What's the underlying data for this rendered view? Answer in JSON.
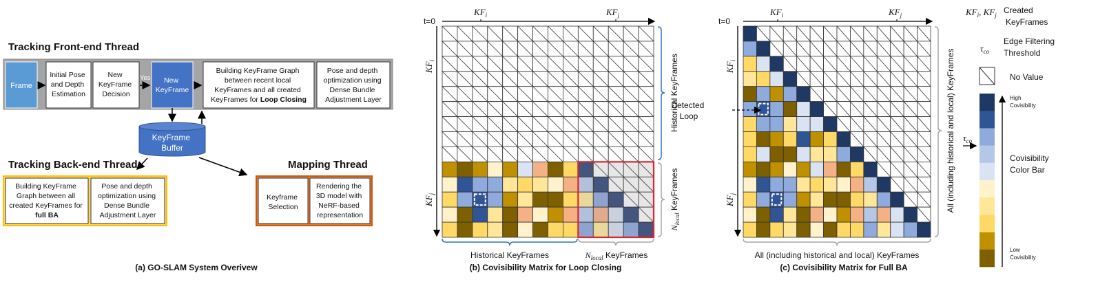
{
  "panel_a": {
    "frontend_title": "Tracking Front-end Thread",
    "frame": "Frame",
    "initial_pose": [
      "Initial Pose",
      "and Depth",
      "Estimation"
    ],
    "decision": [
      "New",
      "KeyFrame",
      "Decision"
    ],
    "yes": "Yes",
    "new_keyframe": [
      "New",
      "KeyFrame"
    ],
    "building_lc": [
      "Building KeyFrame Graph",
      "between recent local",
      "KeyFrames and all created",
      "KeyFrames for ",
      "Loop Closing"
    ],
    "pose_opt": [
      "Pose and depth",
      "optimization using",
      "Dense Bundle",
      "Adjustment Layer"
    ],
    "buffer": [
      "KeyFrame",
      "Buffer"
    ],
    "backend_title": "Tracking Back-end Thread",
    "building_ba": [
      "Building KeyFrame",
      "Graph between all",
      "created KeyFrames for",
      "full BA"
    ],
    "pose_opt_ba": [
      "Pose and depth",
      "optimization using",
      "Dense Bundle",
      "Adjustment Layer"
    ],
    "mapping_title": "Mapping Thread",
    "kf_selection": [
      "Keyframe",
      "Selection"
    ],
    "rendering": [
      "Rendering the",
      "3D model with",
      "NeRF-based",
      "representation"
    ],
    "caption": "(a) GO-SLAM System Overivew",
    "colors": {
      "frame": "#5b9bd5",
      "keyframe": "#4472c4",
      "band": "#a5a5a5",
      "backend": "#ffc000",
      "mapping": "#c55a11"
    }
  },
  "panel_b": {
    "t0": "t=0",
    "kfi": "KF",
    "kfi_sub": "i",
    "kfj": "KF",
    "kfj_sub": "j",
    "right_top": "Historical KeyFrames",
    "right_bottom_n": "N",
    "right_bottom_sub": "local",
    "right_bottom_rest": " KeyFrames",
    "bottom_left": "Historical KeyFrames",
    "bottom_right_n": "N",
    "bottom_right_sub": "local",
    "bottom_right_rest": " KeyFrames",
    "caption": "(b) Covisibility Matrix for Loop Closing",
    "matrix": [
      "- - - - - - - - - - - - - -",
      "- - - - - - - - - - - - - -",
      "- - - - - - - - - - - - - -",
      "- - - - - - - - - - - - - -",
      "- - - - - - - - - - - - - -",
      "- - - - - - - - - - - - - -",
      "- - - - - - - - - - - - - -",
      "- - - - - - - - - - - - - -",
      "- - - - - - - - - - - - - -",
      "O D O C O P S D G n x x x x",
      "C B M M Y G Y C S l n x x x",
      "G M B M O Y D D G t m n x x",
      "C D B Y D S C O S l s p n x",
      "G D G Y D C D G G m t p m n"
    ],
    "loop_cell": [
      11,
      2
    ]
  },
  "panel_c": {
    "t0": "t=0",
    "kfi": "KF",
    "kfi_sub": "i",
    "kfj": "KF",
    "kfj_sub": "j",
    "right": "All (including historical and local) KeyFrames",
    "bottom": "All (including historical and local) KeyFrames",
    "detected": [
      "Detected",
      "Loop"
    ],
    "caption": "(c) Covisibility Matrix for Full BA",
    "matrix": [
      "N - - - - - - - - - - - - -",
      "M N - - - - - - - - - - - -",
      "G P N - - - - - - - - - - -",
      "Y G P N - - - - - - - - - -",
      "D M O M N - - - - - - - - -",
      "M B M D P N - - - - - - - -",
      "G M M Y P P N - - - - - - -",
      "G D O G B O G N - - - - - -",
      "G P D D P Y Y M N - - - - -",
      "O D O C O P S D G N - - - -",
      "C B M M Y G Y C S L N - - -",
      "G M B M O Y D D G Y M N - -",
      "C D B Y D S C O S L S P N -",
      "G D G Y D C D G G M Y P M N"
    ],
    "loop_cells": [
      [
        5,
        1
      ],
      [
        11,
        2
      ]
    ]
  },
  "legend": {
    "kf_symbol": "KF",
    "kf_sub_i": "i",
    "kf_sub_j": "j",
    "created": [
      "Created",
      "KeyFrames"
    ],
    "tau": "τ",
    "tau_sub": "co",
    "edge": [
      "Edge Filtering",
      "Threshold"
    ],
    "no_value": "No Value",
    "high": [
      "High",
      "Covisibility"
    ],
    "bar_label": [
      "Covisibility",
      "Color Bar"
    ],
    "low": [
      "Low",
      "Covisibility"
    ],
    "colorbar": [
      "#203864",
      "#2f5597",
      "#8faadc",
      "#b4c7e7",
      "#dae3f3",
      "#fff2cc",
      "#ffe699",
      "#ffd966",
      "#bf9000",
      "#7f6000"
    ]
  },
  "palette": {
    "N": "#203864",
    "B": "#2f5597",
    "M": "#8faadc",
    "L": "#b4c7e7",
    "P": "#dae3f3",
    "C": "#fff2cc",
    "Y": "#ffe699",
    "G": "#ffd966",
    "O": "#bf9000",
    "D": "#7f6000",
    "S": "#f4b183",
    "n": "#44557e",
    "l": "#b3c0dc",
    "t": "#e8d89c",
    "m": "#8fa3cf",
    "s": "#e2ab8c",
    "p": "#c9d0e0",
    "x": "#e7e7e7",
    "-": "#ffffff",
    "blue_brace": "#2e75b6",
    "gray_brace": "#a6a6a6",
    "local_box": "#e0242b"
  }
}
